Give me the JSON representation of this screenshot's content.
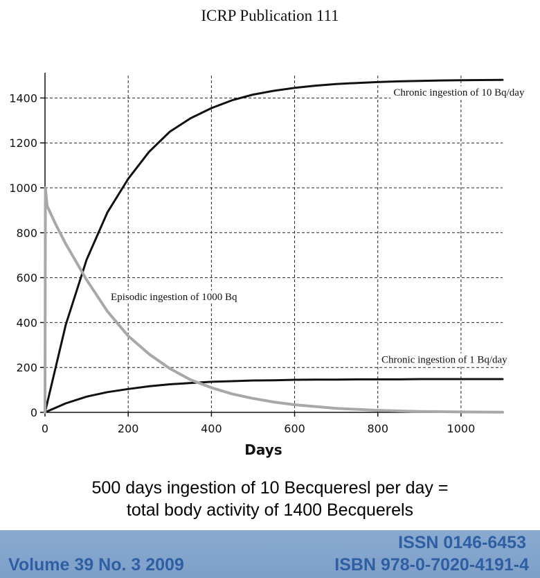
{
  "header": {
    "title": "ICRP Publication 111"
  },
  "chart_data": {
    "type": "line",
    "title": "",
    "xlabel": "Days",
    "ylabel": "",
    "xlim": [
      0,
      1100
    ],
    "ylim": [
      0,
      1500
    ],
    "x_ticks": [
      0,
      200,
      400,
      600,
      800,
      1000
    ],
    "y_ticks": [
      0,
      200,
      400,
      600,
      800,
      1000,
      1200,
      1400
    ],
    "grid": true,
    "series": [
      {
        "id": "chronic10",
        "color": "#111111",
        "width": 3,
        "x": [
          0,
          50,
          100,
          150,
          200,
          250,
          300,
          350,
          400,
          450,
          500,
          550,
          600,
          650,
          700,
          750,
          800,
          850,
          900,
          950,
          1000,
          1050,
          1100
        ],
        "y": [
          0,
          390,
          680,
          890,
          1040,
          1160,
          1250,
          1310,
          1355,
          1390,
          1415,
          1432,
          1445,
          1455,
          1462,
          1467,
          1471,
          1474,
          1476,
          1478,
          1479,
          1480,
          1481
        ]
      },
      {
        "id": "chronic1",
        "color": "#111111",
        "width": 3,
        "x": [
          0,
          50,
          100,
          150,
          200,
          250,
          300,
          350,
          400,
          450,
          500,
          550,
          600,
          650,
          700,
          750,
          800,
          850,
          900,
          950,
          1000,
          1050,
          1100
        ],
        "y": [
          0,
          40,
          70,
          90,
          104,
          116,
          125,
          131,
          136,
          139,
          142,
          143,
          145,
          146,
          146,
          147,
          147,
          147,
          148,
          148,
          148,
          148,
          148
        ]
      },
      {
        "id": "episodic1000",
        "color": "#a8a8a8",
        "width": 4,
        "x": [
          0,
          1,
          5,
          25,
          50,
          75,
          100,
          150,
          200,
          250,
          300,
          350,
          400,
          450,
          500,
          550,
          600,
          650,
          700,
          800,
          900,
          1000,
          1100
        ],
        "y": [
          0,
          1000,
          920,
          840,
          750,
          670,
          590,
          450,
          340,
          260,
          195,
          145,
          110,
          82,
          62,
          46,
          34,
          26,
          18,
          9,
          4,
          2,
          1
        ]
      }
    ],
    "annotations": [
      {
        "text": "Chronic ingestion of 10 Bq/day",
        "x": 995,
        "y": 1410
      },
      {
        "text": "Episodic ingestion of 1000 Bq",
        "x": 310,
        "y": 500
      },
      {
        "text": "Chronic ingestion of 1 Bq/day",
        "x": 960,
        "y": 220
      }
    ]
  },
  "caption": {
    "line1": "500 days ingestion of 10 Becqueresl per day =",
    "line2": "total body activity of 1400 Becquerels"
  },
  "footer": {
    "volume": "Volume 39 No. 3 2009",
    "issn": "ISSN 0146-6453",
    "isbn": "ISBN 978-0-7020-4191-4"
  }
}
